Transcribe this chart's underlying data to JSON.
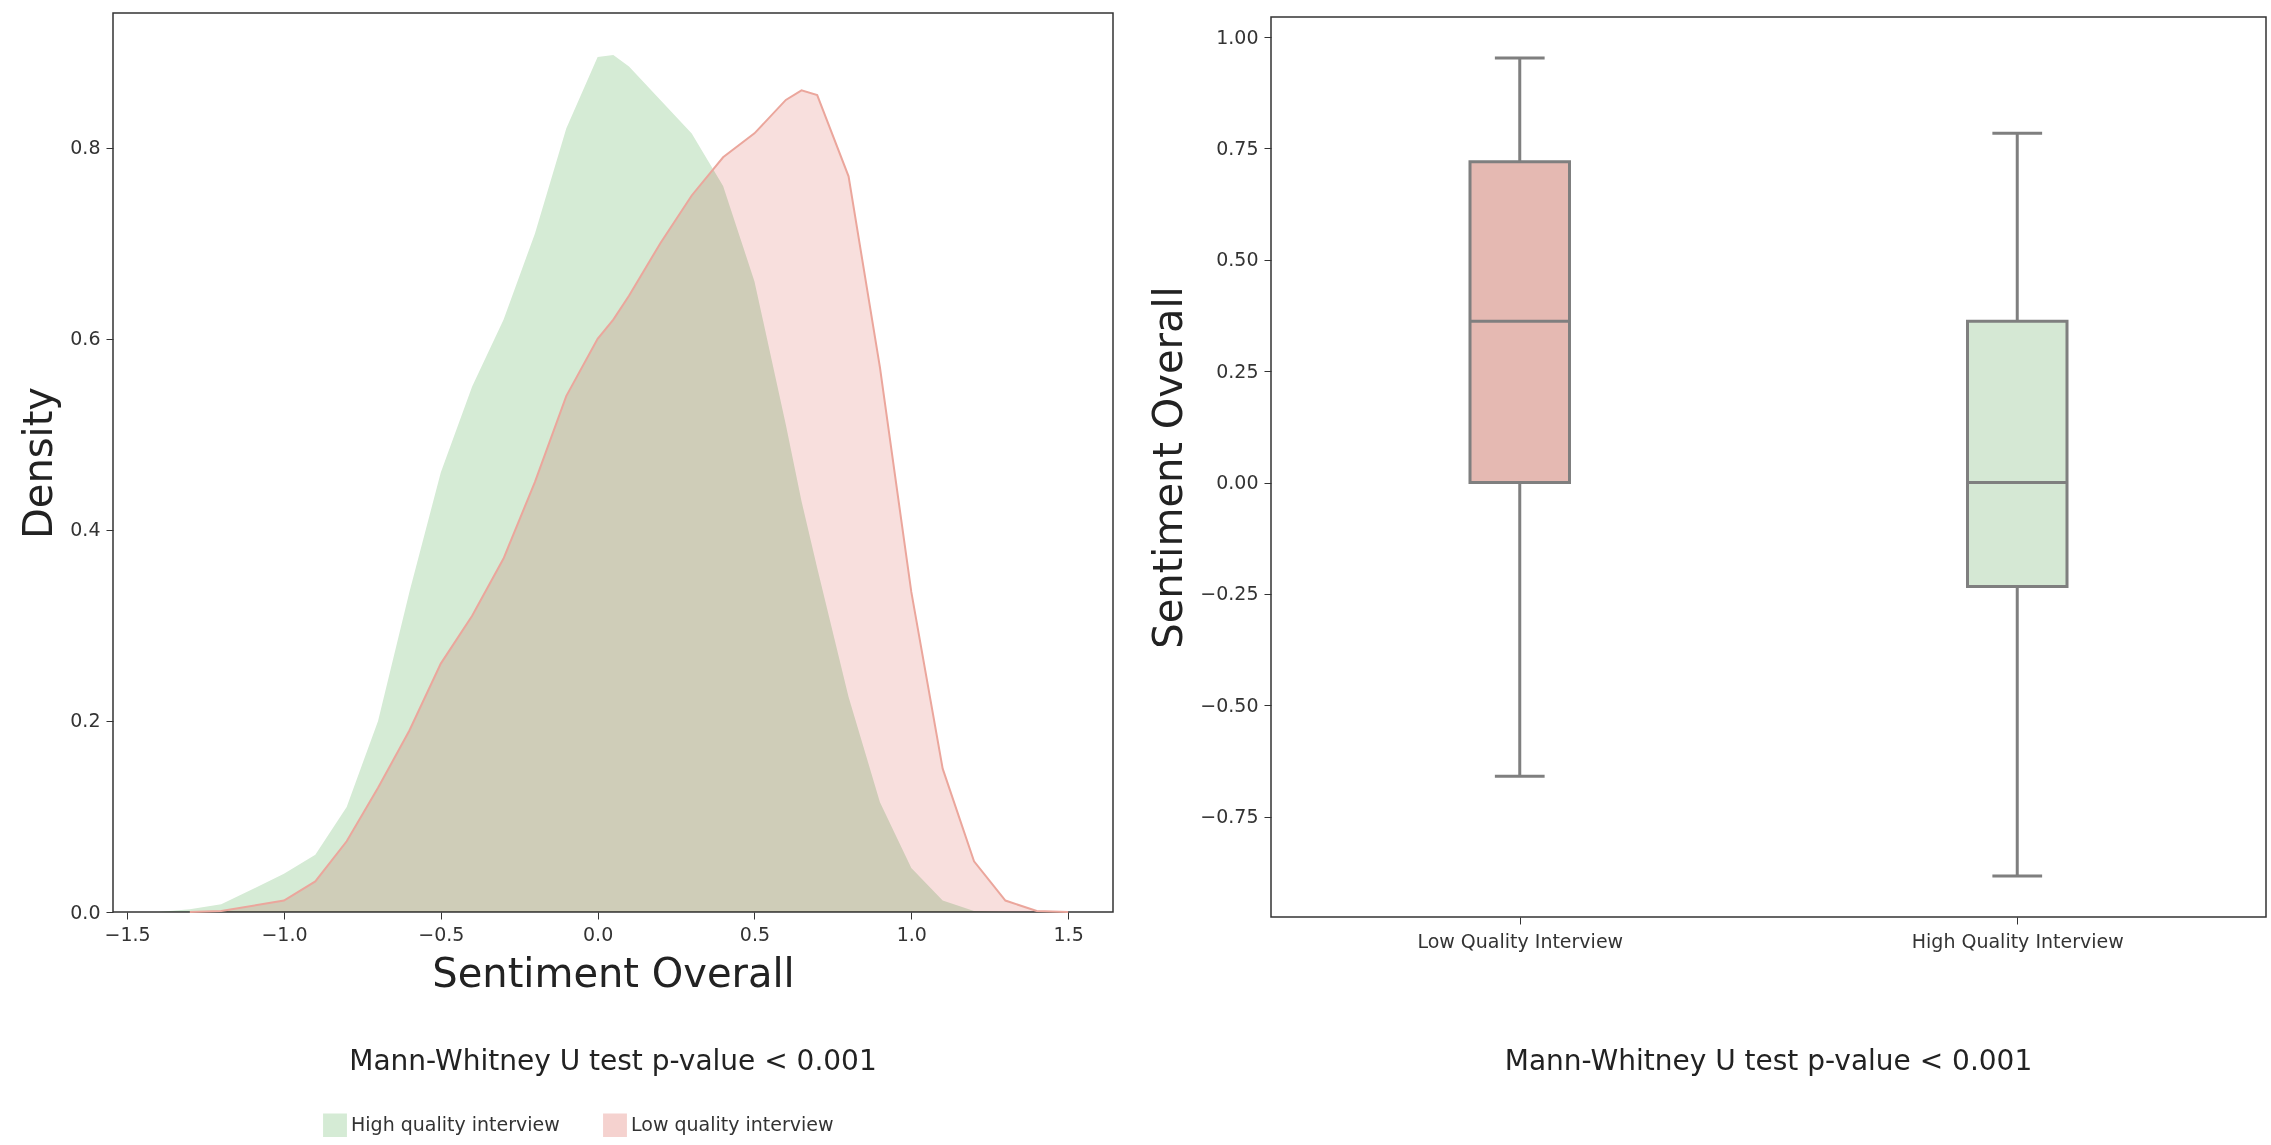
{
  "chart_data": [
    {
      "type": "area",
      "xlabel": "Sentiment Overall",
      "ylabel": "Density",
      "legend": "bottom",
      "annotations": [
        "Mann-Whitney U test p-value < 0.001"
      ],
      "x": [
        -1.4,
        -1.3,
        -1.2,
        -1.0,
        -0.9,
        -0.8,
        -0.7,
        -0.6,
        -0.5,
        -0.4,
        -0.3,
        -0.2,
        -0.1,
        0.0,
        0.05,
        0.1,
        0.2,
        0.3,
        0.4,
        0.5,
        0.6,
        0.65,
        0.7,
        0.8,
        0.9,
        1.0,
        1.1,
        1.2,
        1.3,
        1.4,
        1.5
      ],
      "series": [
        {
          "name": "High quality interview",
          "color": "#d5ebd5",
          "values": [
            0,
            0.003,
            0.008,
            0.04,
            0.06,
            0.11,
            0.2,
            0.335,
            0.46,
            0.55,
            0.62,
            0.71,
            0.82,
            0.895,
            0.897,
            0.885,
            0.85,
            0.815,
            0.76,
            0.66,
            0.51,
            0.43,
            0.36,
            0.225,
            0.115,
            0.046,
            0.012,
            0.001,
            0,
            null,
            null
          ]
        },
        {
          "name": "Low quality interview",
          "color": "#f5d2cf",
          "values": [
            null,
            0,
            0.001,
            0.012,
            0.032,
            0.074,
            0.13,
            0.19,
            0.26,
            0.31,
            0.37,
            0.45,
            0.54,
            0.6,
            0.62,
            0.645,
            0.7,
            0.75,
            0.79,
            0.815,
            0.85,
            0.86,
            0.855,
            0.77,
            0.57,
            0.335,
            0.15,
            0.053,
            0.012,
            0.001,
            0
          ]
        }
      ],
      "xlim": [
        -1.545,
        1.643
      ],
      "ylim": [
        0,
        0.941
      ],
      "xticks": [
        {
          "value": -1.5,
          "label": "−1.5"
        },
        {
          "value": -1.0,
          "label": "−1.0"
        },
        {
          "value": -0.5,
          "label": "−0.5"
        },
        {
          "value": 0,
          "label": "0.0"
        },
        0.5,
        {
          "value": 1.0,
          "label": "1.0"
        },
        1.5
      ],
      "yticks": [
        {
          "value": 0,
          "label": "0.0"
        },
        0.2,
        0.4,
        0.6,
        0.8
      ]
    },
    {
      "type": "box",
      "ylabel": "Sentiment Overall",
      "annotations": [
        "Mann-Whitney U test p-value < 0.001"
      ],
      "categories": [
        "Low Quality Interview",
        "High Quality Interview"
      ],
      "colors": [
        "#e5b9b2",
        "#d5e8d4"
      ],
      "boxes": [
        {
          "low": -0.659,
          "q1": 0,
          "median": 0.362,
          "q3": 0.72,
          "high": 0.953
        },
        {
          "low": -0.883,
          "q1": -0.233,
          "median": 0,
          "q3": 0.362,
          "high": 0.784
        }
      ],
      "ylim": [
        -0.975,
        1.045
      ],
      "yticks": [
        {
          "value": 1,
          "label": "1.00"
        },
        0.75,
        {
          "value": 0.5,
          "label": "0.50"
        },
        0.25,
        {
          "value": 0,
          "label": "0.00"
        },
        {
          "value": -0.25,
          "label": "−0.25"
        },
        {
          "value": -0.5,
          "label": "−0.50"
        },
        {
          "value": -0.75,
          "label": "−0.75"
        }
      ]
    }
  ]
}
